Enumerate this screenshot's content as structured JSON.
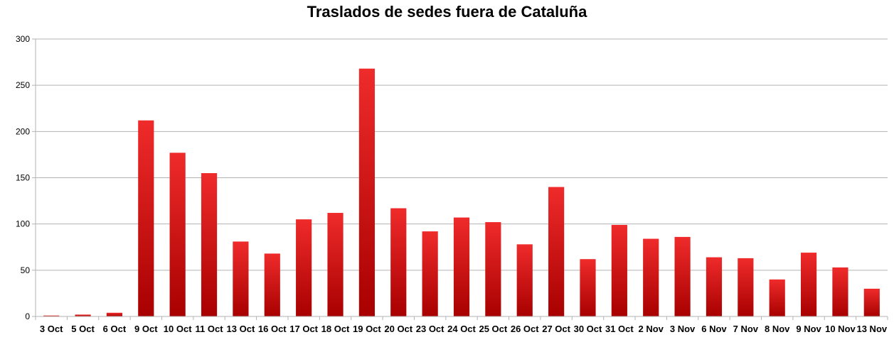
{
  "chart_data": {
    "type": "bar",
    "title": "Traslados de sedes fuera de Cataluña",
    "xlabel": "",
    "ylabel": "",
    "ylim": [
      0,
      300
    ],
    "yticks": [
      0,
      50,
      100,
      150,
      200,
      250,
      300
    ],
    "grid": true,
    "legend": "none",
    "bar_color_top": "#ef2b2b",
    "bar_color_bottom": "#a80000",
    "categories": [
      "3 Oct",
      "5 Oct",
      "6 Oct",
      "9 Oct",
      "10 Oct",
      "11 Oct",
      "13 Oct",
      "16 Oct",
      "17 Oct",
      "18 Oct",
      "19 Oct",
      "20 Oct",
      "23 Oct",
      "24 Oct",
      "25 Oct",
      "26 Oct",
      "27 Oct",
      "30 Oct",
      "31 Oct",
      "2 Nov",
      "3 Nov",
      "6 Nov",
      "7 Nov",
      "8 Nov",
      "9 Nov",
      "10 Nov",
      "13 Nov"
    ],
    "values": [
      1,
      2,
      4,
      212,
      177,
      155,
      81,
      68,
      105,
      112,
      268,
      117,
      92,
      107,
      102,
      78,
      140,
      62,
      99,
      84,
      86,
      64,
      63,
      40,
      69,
      53,
      30
    ]
  }
}
